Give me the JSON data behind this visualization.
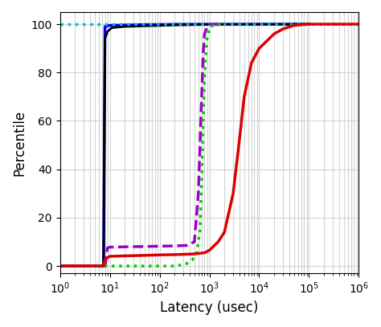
{
  "xlabel": "Latency (usec)",
  "ylabel": "Percentile",
  "xlim": [
    1,
    1000000
  ],
  "ylim": [
    -3,
    105
  ],
  "yticks": [
    0,
    20,
    40,
    60,
    80,
    100
  ],
  "lines": [
    {
      "color": "#0000ff",
      "linestyle": "solid",
      "linewidth": 2.5,
      "points": [
        [
          1,
          0
        ],
        [
          7.5,
          0
        ],
        [
          7.5,
          0
        ],
        [
          8,
          99
        ],
        [
          10,
          99.5
        ],
        [
          50,
          99.8
        ],
        [
          300,
          99.95
        ],
        [
          100000,
          99.99
        ]
      ]
    },
    {
      "color": "#000000",
      "linestyle": "solid",
      "linewidth": 2.0,
      "points": [
        [
          1,
          0
        ],
        [
          7.5,
          0
        ],
        [
          8,
          94
        ],
        [
          9,
          97
        ],
        [
          11,
          98.5
        ],
        [
          20,
          99.0
        ],
        [
          60,
          99.3
        ],
        [
          200,
          99.6
        ],
        [
          1000,
          99.85
        ],
        [
          100000,
          99.97
        ]
      ]
    },
    {
      "color": "#00bbcc",
      "linestyle": "dotted",
      "linewidth": 2.5,
      "points": [
        [
          1,
          100
        ],
        [
          1000000,
          100
        ]
      ]
    },
    {
      "color": "#9900cc",
      "linestyle": "dashed",
      "linewidth": 2.5,
      "points": [
        [
          1,
          0
        ],
        [
          8,
          0
        ],
        [
          9,
          7.5
        ],
        [
          10,
          7.8
        ],
        [
          30,
          8.0
        ],
        [
          100,
          8.2
        ],
        [
          200,
          8.3
        ],
        [
          350,
          8.5
        ],
        [
          500,
          10
        ],
        [
          600,
          30
        ],
        [
          700,
          70
        ],
        [
          750,
          88
        ],
        [
          800,
          96
        ],
        [
          900,
          99
        ],
        [
          1000,
          99.8
        ],
        [
          2000,
          100
        ]
      ]
    },
    {
      "color": "#00cc00",
      "linestyle": "dotted",
      "linewidth": 2.5,
      "points": [
        [
          1,
          0
        ],
        [
          200,
          0
        ],
        [
          250,
          0.3
        ],
        [
          350,
          1.0
        ],
        [
          450,
          2.5
        ],
        [
          550,
          5.0
        ],
        [
          650,
          15
        ],
        [
          700,
          35
        ],
        [
          750,
          60
        ],
        [
          800,
          78
        ],
        [
          850,
          88
        ],
        [
          900,
          94
        ],
        [
          1000,
          98.5
        ],
        [
          1200,
          99.5
        ],
        [
          2000,
          100
        ]
      ]
    },
    {
      "color": "#dd0000",
      "linestyle": "solid",
      "linewidth": 2.5,
      "points": [
        [
          1,
          0
        ],
        [
          7.5,
          0
        ],
        [
          8,
          2.5
        ],
        [
          9,
          3.5
        ],
        [
          10,
          4.0
        ],
        [
          20,
          4.2
        ],
        [
          50,
          4.4
        ],
        [
          100,
          4.6
        ],
        [
          200,
          4.7
        ],
        [
          500,
          5.0
        ],
        [
          800,
          5.5
        ],
        [
          1000,
          6.5
        ],
        [
          1500,
          10
        ],
        [
          2000,
          14
        ],
        [
          3000,
          30
        ],
        [
          4000,
          52
        ],
        [
          5000,
          70
        ],
        [
          7000,
          84
        ],
        [
          10000,
          90
        ],
        [
          15000,
          93.5
        ],
        [
          20000,
          96
        ],
        [
          30000,
          98
        ],
        [
          50000,
          99.5
        ],
        [
          100000,
          100
        ],
        [
          1000000,
          100
        ]
      ]
    }
  ]
}
